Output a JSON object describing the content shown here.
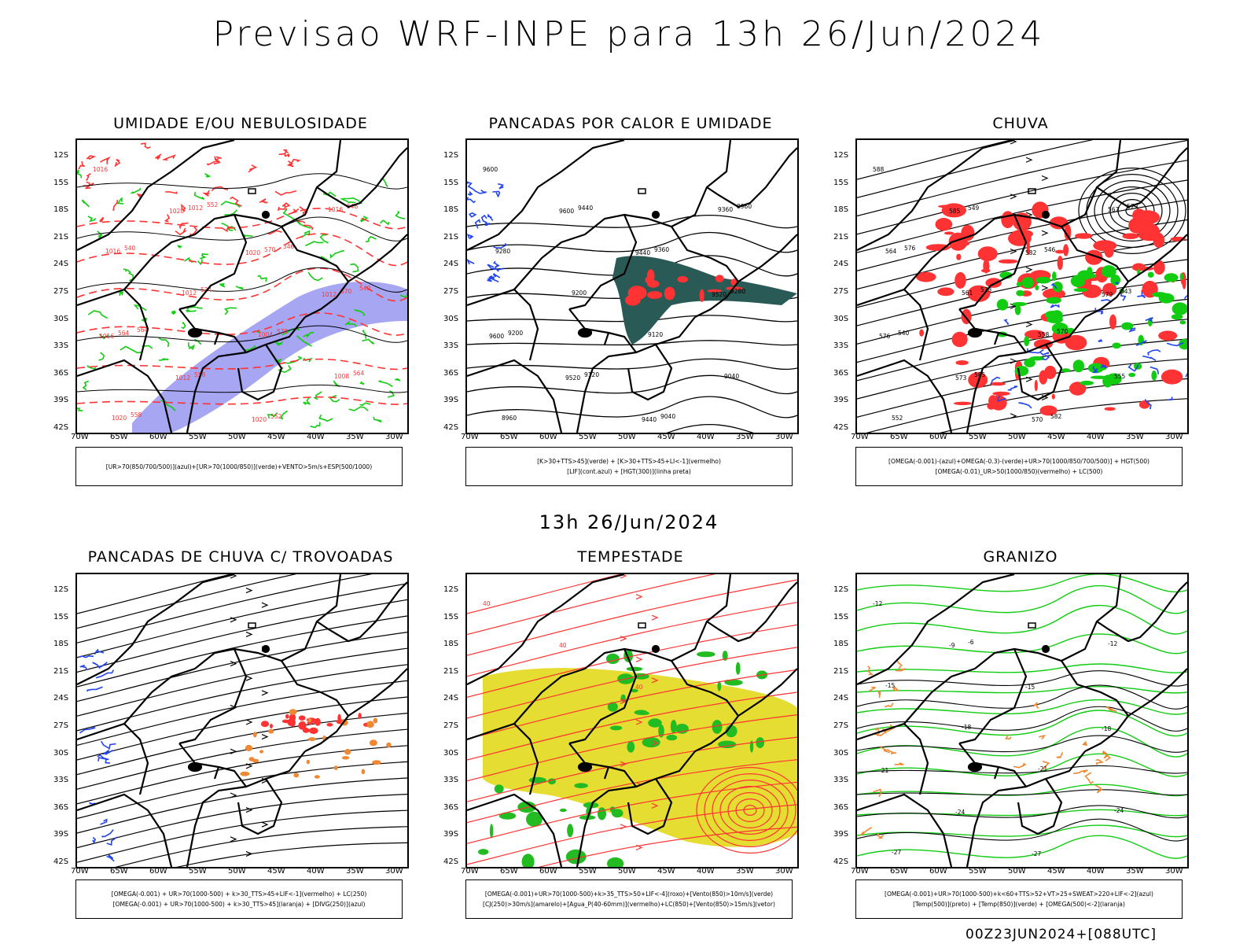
{
  "header": {
    "title": "Previsao WRF-INPE  para 13h 26/Jun/2024",
    "mid_time": "13h 26/Jun/2024",
    "footer": "00Z23JUN2024+[088UTC]"
  },
  "axes": {
    "lat_labels": [
      "12S",
      "15S",
      "18S",
      "21S",
      "24S",
      "27S",
      "30S",
      "33S",
      "36S",
      "39S",
      "42S"
    ],
    "lon_labels": [
      "70W",
      "65W",
      "60W",
      "55W",
      "50W",
      "45W",
      "40W",
      "35W",
      "30W"
    ]
  },
  "panels": [
    {
      "title": "UMIDADE E/OU NEBULOSIDADE",
      "legend": [
        "[UR>70(850/700/500)](azul)+[UR>70(1000/850)](verde)+VENTO>5m/s+ESP(500/1000)"
      ],
      "contour_labels": [
        "1016",
        "1020",
        "1020",
        "1012",
        "1016",
        "1012",
        "1020",
        "1016",
        "1016",
        "1012",
        "1004",
        "1008",
        "1020",
        "1012",
        "570",
        "570",
        "564",
        "558",
        "552",
        "546",
        "540",
        "534",
        "570",
        "564",
        "558",
        "552",
        "546",
        "540",
        "564"
      ]
    },
    {
      "title": "PANCADAS POR CALOR E UMIDADE",
      "legend": [
        "[K>30+TTS>45](verde) + [K>30+TTS>45+LI<-1](vermelho)",
        "[LIF](cont.azul) + [HGT(300)](linha preta)"
      ],
      "contour_labels": [
        "9600",
        "9600",
        "9440",
        "9520",
        "9600",
        "9520",
        "9440",
        "9360",
        "9280",
        "9200",
        "9120",
        "9040",
        "8960",
        "9440",
        "9360",
        "9280",
        "9200",
        "9120",
        "9040",
        "8960"
      ]
    },
    {
      "title": "CHUVA",
      "legend": [
        "[OMEGA(-0.001)-(azul)+OMEGA(-0.3)-(verde)+UR>70(1000/850/700/500)] + HGT(500)",
        "[OMEGA(-0.01)_UR>50(1000/850)(vermelho) + LC(500)"
      ],
      "contour_labels": [
        "588",
        "585",
        "582",
        "579",
        "576",
        "573",
        "570",
        "567",
        "564",
        "561",
        "558",
        "555",
        "552",
        "549",
        "546",
        "543",
        "540",
        "585",
        "582",
        "579",
        "576",
        "573",
        "570"
      ]
    },
    {
      "title": "PANCADAS DE CHUVA C/ TROVOADAS",
      "legend": [
        "[OMEGA(-0.001) + UR>70(1000-500) + k>30_TTS>45+LIF<-1](vermelho) + LC(250)",
        "[OMEGA(-0.001) + UR>70(1000-500) + k>30_TTS>45](laranja) + [DIVG(250)](azul)"
      ],
      "contour_labels": []
    },
    {
      "title": "TEMPESTADE",
      "legend": [
        "[OMEGA(-0.001)+UR>70(1000-500)+k>35_TTS>50+LIF<-4](roxo)+[Vento(850)>10m/s](verde)",
        "[CJ(250)>30m/s](amarelo)+[Agua_P(40-60mm)](vermelho)+LC(850)+[Vento(850)>15m/s](vetor)"
      ],
      "contour_labels": [
        "40",
        "40",
        "40"
      ]
    },
    {
      "title": "GRANIZO",
      "legend": [
        "[OMEGA(-0.001)+UR>70(1000-500)+k<60+TTS>52+VT>25+SWEAT>220+LIF<-2](azul)",
        "[Temp(500)](preto) + [Temp(850)](verde) + [OMEGA(500)<-2](laranja)"
      ],
      "contour_labels": [
        "-12",
        "-9",
        "-15",
        "-18",
        "-21",
        "-24",
        "-27",
        "-12",
        "-15",
        "-18",
        "-21",
        "-24",
        "-27",
        "-6"
      ]
    }
  ],
  "colors": {
    "blue": "#2244ee",
    "green": "#11cc11",
    "red": "#ff3333",
    "purple_fill": "#8888ee",
    "yellow": "#e6dd33",
    "orange": "#ee8833",
    "teal": "#2a5a55"
  }
}
